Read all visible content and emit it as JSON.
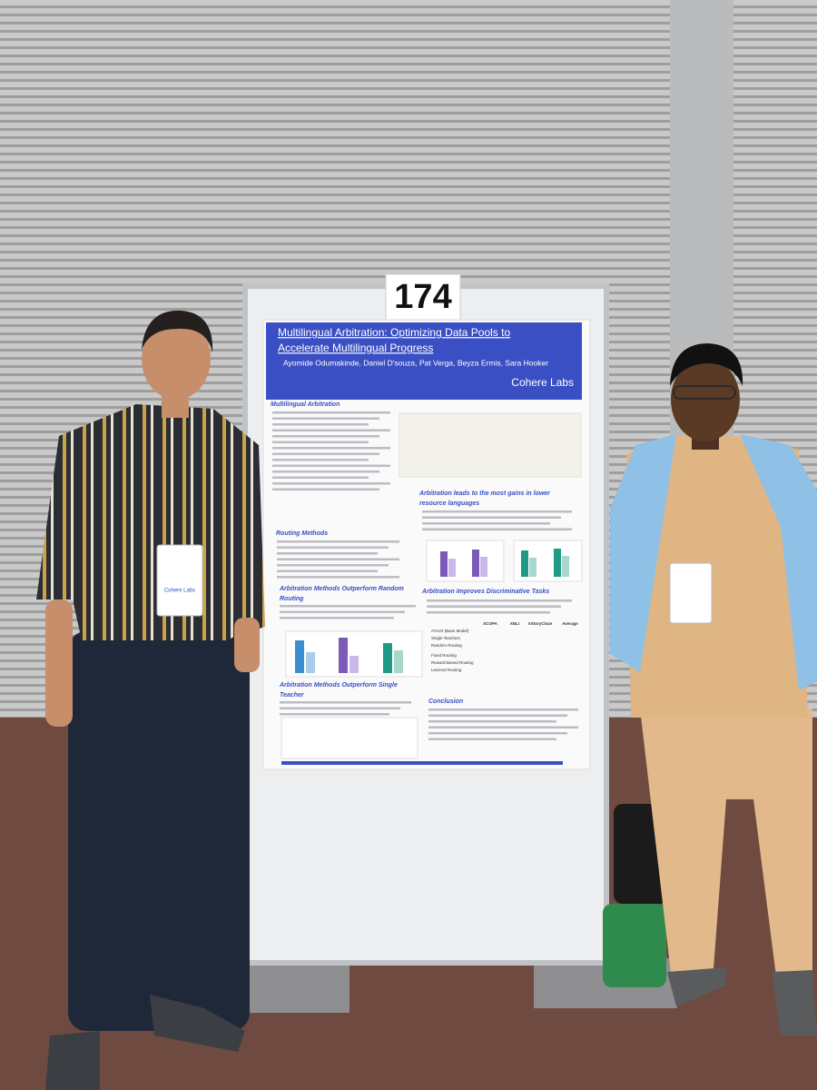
{
  "sign": "174",
  "poster": {
    "title_lines": [
      "Multilingual Arbitration: Optimizing Data Pools to",
      "Accelerate Multilingual Progress"
    ],
    "authors": "Ayomide Odumakinde, Daniel D'souza, Pat Verga, Beyza Ermis, Sara Hooker",
    "logo": "Cohere Labs",
    "sections": [
      {
        "lines": [
          "Multilingual Arbitration"
        ]
      },
      {
        "lines": [
          "Routing Methods"
        ]
      },
      {
        "lines": [
          "Arbitration Methods Outperform Random",
          "Routing"
        ]
      },
      {
        "lines": [
          "Arbitration Methods Outperform Single",
          "Teacher"
        ]
      },
      {
        "lines": [
          "Arbitration leads to the most gains in lower",
          "resource languages"
        ]
      },
      {
        "lines": [
          "Arbitration Improves Discriminative Tasks"
        ]
      },
      {
        "lines": [
          "Conclusion"
        ]
      }
    ],
    "table": {
      "header": [
        "XCOPA",
        "XNLI",
        "XStoryCloze",
        "Average"
      ],
      "rows": [
        "AYA23 (Base Model)",
        "Single Teachers",
        "Random Routing",
        "Fixed Routing",
        "Reward-Based Routing",
        "Learned Routing"
      ]
    }
  },
  "badge": "Cohere Labs"
}
